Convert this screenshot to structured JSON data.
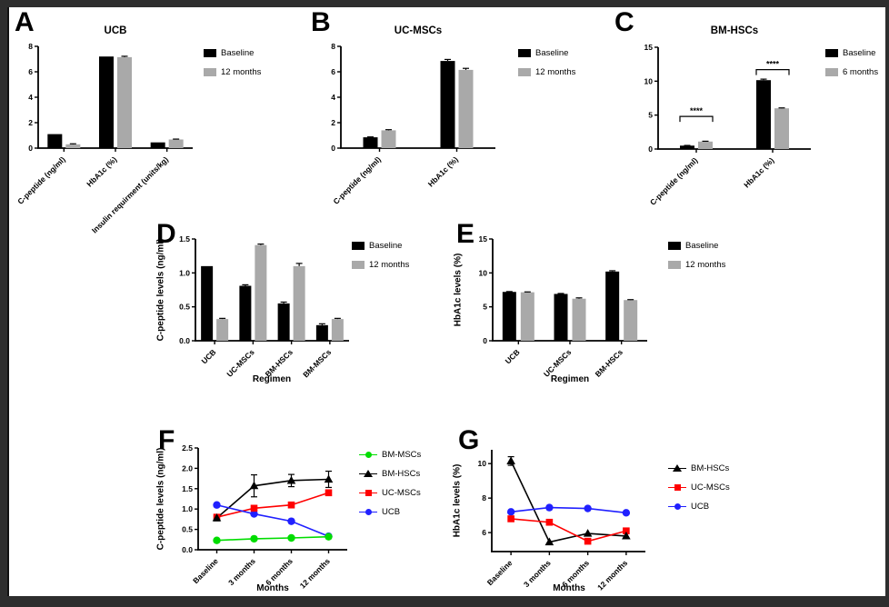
{
  "figure": {
    "frame_color": "#2e2e2e",
    "panel_bg": "#ffffff",
    "axis_color": "#000000",
    "baseline_bar_color": "#000000",
    "followup_bar_color": "#a9a9a9"
  },
  "chart_data": [
    {
      "panel": "A",
      "type": "bar",
      "title": "UCB",
      "categories": [
        "C-peptide (ng/ml)",
        "HbA1c (%)",
        "Insulin requirment (units/kg)"
      ],
      "series": [
        {
          "name": "Baseline",
          "color": "#000000",
          "values": [
            1.1,
            7.2,
            0.45
          ],
          "errors": [
            0,
            0,
            0
          ]
        },
        {
          "name": "12 months",
          "color": "#a9a9a9",
          "values": [
            0.3,
            7.15,
            0.68
          ],
          "errors": [
            0.04,
            0.07,
            0.03
          ]
        }
      ],
      "ylim": [
        0,
        8
      ],
      "yticks": [
        "0",
        "2",
        "4",
        "6",
        "8"
      ],
      "xlabel": "",
      "ylabel": "",
      "legend_position": "right",
      "grid": false
    },
    {
      "panel": "B",
      "type": "bar",
      "title": "UC-MSCs",
      "categories": [
        "C-peptide (ng/ml)",
        "HbA1c (%)"
      ],
      "series": [
        {
          "name": "Baseline",
          "color": "#000000",
          "values": [
            0.85,
            6.85
          ],
          "errors": [
            0.03,
            0.12
          ]
        },
        {
          "name": "12 months",
          "color": "#a9a9a9",
          "values": [
            1.4,
            6.15
          ],
          "errors": [
            0.05,
            0.12
          ]
        }
      ],
      "ylim": [
        0,
        8
      ],
      "yticks": [
        "0",
        "2",
        "4",
        "6",
        "8"
      ],
      "xlabel": "",
      "ylabel": "",
      "legend_position": "right",
      "grid": false
    },
    {
      "panel": "C",
      "type": "bar",
      "title": "BM-HSCs",
      "categories": [
        "C-peptide (ng/ml)",
        "HbA1c (%)"
      ],
      "series": [
        {
          "name": "Baseline",
          "color": "#000000",
          "values": [
            0.5,
            10.15
          ],
          "errors": [
            0.03,
            0.15
          ]
        },
        {
          "name": "6 months",
          "color": "#a9a9a9",
          "values": [
            1.1,
            6.0
          ],
          "errors": [
            0.05,
            0.06
          ]
        }
      ],
      "ylim": [
        0,
        15
      ],
      "yticks": [
        "0",
        "5",
        "10",
        "15"
      ],
      "significance": [
        {
          "category": 0,
          "label": "****",
          "y": 4.8
        },
        {
          "category": 1,
          "label": "****",
          "y": 11.7
        }
      ],
      "xlabel": "",
      "ylabel": "",
      "legend_position": "right",
      "grid": false
    },
    {
      "panel": "D",
      "type": "bar",
      "title": "",
      "categories": [
        "UCB",
        "UC-MSCs",
        "BM-HSCs",
        "BM-MSCs"
      ],
      "series": [
        {
          "name": "Baseline",
          "color": "#000000",
          "values": [
            1.1,
            0.81,
            0.55,
            0.23
          ],
          "errors": [
            0,
            0.015,
            0.02,
            0.02
          ]
        },
        {
          "name": "12 months",
          "color": "#a9a9a9",
          "values": [
            0.32,
            1.41,
            1.1,
            0.32
          ],
          "errors": [
            0.01,
            0.015,
            0.04,
            0.01
          ]
        }
      ],
      "ylim": [
        0,
        1.5
      ],
      "yticks": [
        "0.0",
        "0.5",
        "1.0",
        "1.5"
      ],
      "xlabel": "Regimen",
      "ylabel": "C-peptide levels (ng/ml)",
      "legend_position": "right",
      "grid": false
    },
    {
      "panel": "E",
      "type": "bar",
      "title": "",
      "categories": [
        "UCB",
        "UC-MSCs",
        "BM-HSCs"
      ],
      "series": [
        {
          "name": "Baseline",
          "color": "#000000",
          "values": [
            7.2,
            6.9,
            10.2
          ],
          "errors": [
            0.05,
            0.07,
            0.12
          ]
        },
        {
          "name": "12 months",
          "color": "#a9a9a9",
          "values": [
            7.15,
            6.2,
            6.0
          ],
          "errors": [
            0.05,
            0.12,
            0.06
          ]
        }
      ],
      "ylim": [
        0,
        15
      ],
      "yticks": [
        "0",
        "5",
        "10",
        "15"
      ],
      "xlabel": "Regimen",
      "ylabel": "HbA1c levels (%)",
      "legend_position": "right",
      "grid": false
    },
    {
      "panel": "F",
      "type": "line",
      "title": "",
      "categories": [
        "Baseline",
        "3 months",
        "6 months",
        "12 months"
      ],
      "series": [
        {
          "name": "BM-MSCs",
          "color": "#00dd00",
          "marker": "circle",
          "values": [
            0.23,
            0.27,
            0.29,
            0.32
          ],
          "errors": [
            0.02,
            0,
            0,
            0.03
          ]
        },
        {
          "name": "BM-HSCs",
          "color": "#000000",
          "marker": "triangle",
          "values": [
            0.78,
            1.57,
            1.7,
            1.73
          ],
          "errors": [
            0.07,
            0.27,
            0.15,
            0.2
          ]
        },
        {
          "name": "UC-MSCs",
          "color": "#ff0000",
          "marker": "square",
          "values": [
            0.8,
            1.02,
            1.1,
            1.4
          ],
          "errors": [
            0.04,
            0.04,
            0.04,
            0.05
          ]
        },
        {
          "name": "UCB",
          "color": "#2020ff",
          "marker": "circle",
          "values": [
            1.1,
            0.88,
            0.7,
            0.33
          ],
          "errors": [
            0,
            0,
            0,
            0
          ]
        }
      ],
      "ylim": [
        0,
        2.5
      ],
      "yticks": [
        "0.0",
        "0.5",
        "1.0",
        "1.5",
        "2.0",
        "2.5"
      ],
      "xlabel": "Months",
      "ylabel": "C-peptide levels (ng/ml)",
      "legend_position": "right",
      "grid": false
    },
    {
      "panel": "G",
      "type": "line",
      "title": "",
      "categories": [
        "Baseline",
        "3 months",
        "6 months",
        "12 months"
      ],
      "series": [
        {
          "name": "BM-HSCs",
          "color": "#000000",
          "marker": "triangle",
          "values": [
            10.15,
            5.45,
            5.95,
            5.8
          ],
          "errors": [
            0.25,
            0,
            0,
            0
          ]
        },
        {
          "name": "UC-MSCs",
          "color": "#ff0000",
          "marker": "square",
          "values": [
            6.8,
            6.6,
            5.5,
            6.1
          ],
          "errors": [
            0.1,
            0.1,
            0.15,
            0.15
          ]
        },
        {
          "name": "UCB",
          "color": "#2020ff",
          "marker": "circle",
          "values": [
            7.2,
            7.45,
            7.4,
            7.15
          ],
          "errors": [
            0,
            0,
            0,
            0
          ]
        }
      ],
      "ylim": [
        4.9,
        10.8
      ],
      "yticks": [
        "6",
        "8",
        "10"
      ],
      "xlabel": "Months",
      "ylabel": "HbA1c levels (%)",
      "legend_position": "right",
      "grid": false
    }
  ]
}
